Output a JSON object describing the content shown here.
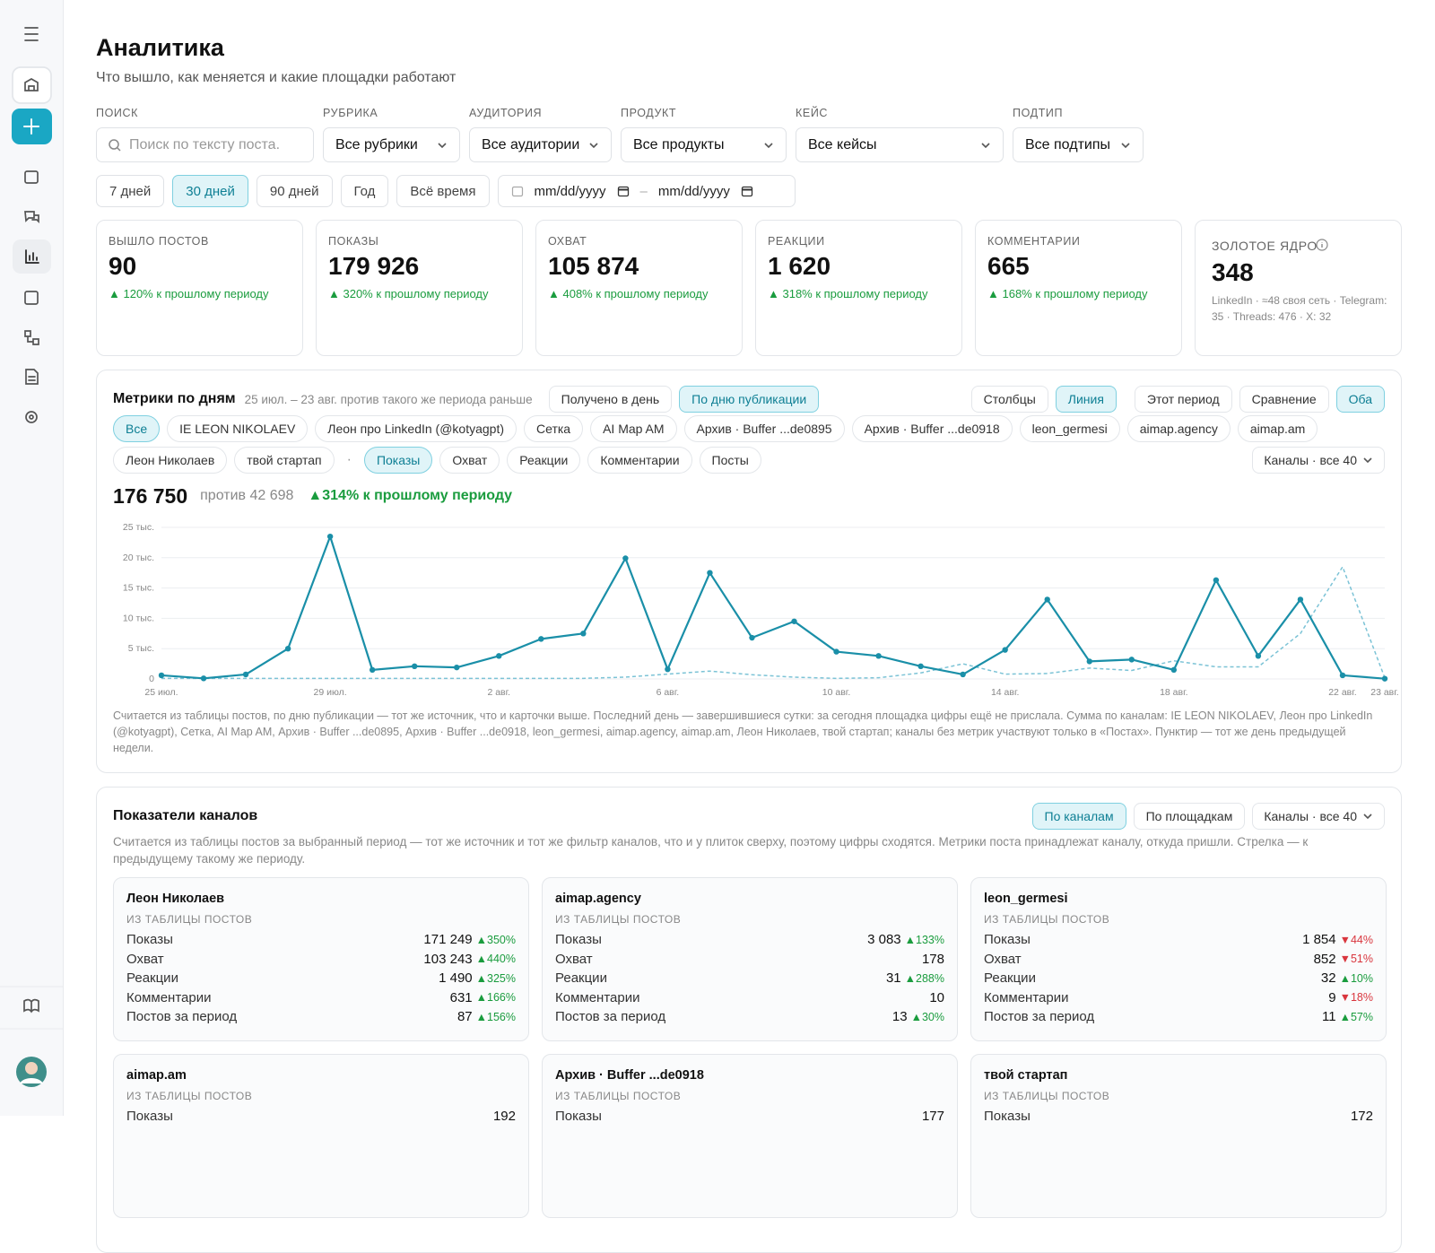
{
  "header": {
    "title": "Аналитика",
    "subtitle": "Что вышло, как меняется и какие площадки работают"
  },
  "filters": [
    {
      "label": "ПОИСК",
      "placeholder": "Поиск по тексту поста."
    },
    {
      "label": "РУБРИКА",
      "value": "Все рубрики"
    },
    {
      "label": "АУДИТОРИЯ",
      "value": "Все аудитории"
    },
    {
      "label": "ПРОДУКТ",
      "value": "Все продукты"
    },
    {
      "label": "КЕЙС",
      "value": "Все кейсы"
    },
    {
      "label": "ПОДТИП",
      "value": "Все подтипы"
    }
  ],
  "periods": {
    "options": [
      "7 дней",
      "30 дней",
      "90 дней",
      "Год",
      "Всё время"
    ],
    "active": 1,
    "date_from": "mm/dd/yyyy",
    "date_sep": "–",
    "date_to": "mm/dd/yyyy"
  },
  "kpis": [
    {
      "label": "ВЫШЛО ПОСТОВ",
      "value": "90",
      "delta": "▲ 120% к прошлому периоду"
    },
    {
      "label": "ПОКАЗЫ",
      "value": "179 926",
      "delta": "▲ 320% к прошлому периоду"
    },
    {
      "label": "ОХВАТ",
      "value": "105 874",
      "delta": "▲ 408% к прошлому периоду"
    },
    {
      "label": "РЕАКЦИИ",
      "value": "1 620",
      "delta": "▲ 318% к прошлому периоду"
    },
    {
      "label": "КОММЕНТАРИИ",
      "value": "665",
      "delta": "▲ 168% к прошлому периоду"
    }
  ],
  "golden": {
    "label": "ЗОЛОТОЕ ЯДРО",
    "value": "348",
    "note": "LinkedIn · ≈48 своя сеть · Telegram: 35 · Threads: 476 · X: 32"
  },
  "daily": {
    "title": "Метрики по дням",
    "subtitle": "25 июл. – 23 авг. против такого же периода раньше",
    "source_toggle": {
      "options": [
        "Получено в день",
        "По дню публикации"
      ],
      "active": 1
    },
    "view_toggle": {
      "options": [
        "Столбцы",
        "Линия"
      ],
      "active": 1
    },
    "range_toggle": {
      "options": [
        "Этот период",
        "Сравнение",
        "Оба"
      ],
      "active": 2
    },
    "channels": {
      "options": [
        "Все",
        "IE LEON NIKOLAEV",
        "Леон про LinkedIn (@kotyagpt)",
        "Сетка",
        "AI Map AM",
        "Архив · Buffer ...de0895",
        "Архив · Buffer ...de0918",
        "leon_germesi",
        "aimap.agency",
        "aimap.am",
        "Леон Николаев",
        "твой стартап"
      ],
      "active": 0
    },
    "separator": "·",
    "metrics": {
      "options": [
        "Показы",
        "Охват",
        "Реакции",
        "Комментарии",
        "Посты"
      ],
      "active": 0
    },
    "select": "Каналы · все 40",
    "total": "176 750",
    "baseline": "против 42 698",
    "change": "▲314% к прошлому периоду",
    "footnote": "Считается из таблицы постов, по дню публикации — тот же источник, что и карточки выше. Последний день — завершившиеся сутки: за сегодня площадка цифры ещё не прислала. Сумма по каналам: IE LEON NIKOLAEV, Леон про LinkedIn (@kotyagpt), Сетка, AI Map AM, Архив · Buffer ...de0895, Архив · Buffer ...de0918, leon_germesi, aimap.agency, aimap.am, Леон Николаев, твой стартап; каналы без метрик участвуют только в «Постах». Пунктир — тот же день предыдущей недели."
  },
  "chart_data": {
    "type": "line",
    "categories": [
      "25 июл.",
      null,
      null,
      null,
      "29 июл.",
      null,
      null,
      null,
      "2 авг.",
      null,
      null,
      null,
      "6 авг.",
      null,
      null,
      null,
      "10 авг.",
      null,
      null,
      null,
      "14 авг.",
      null,
      null,
      null,
      "18 авг.",
      null,
      null,
      null,
      "22 авг.",
      "23 авг."
    ],
    "series": [
      {
        "color": "#1a8fa8",
        "style": "solid",
        "values": [
          600,
          100,
          750,
          5000,
          23500,
          1500,
          2100,
          1900,
          3800,
          6600,
          7500,
          19900,
          1600,
          17500,
          6800,
          9500,
          4500,
          3800,
          2100,
          750,
          4800,
          13100,
          2900,
          3200,
          1500,
          16300,
          3800,
          13100,
          600,
          50
        ]
      },
      {
        "color": "#7cc3d6",
        "style": "dashed",
        "values": [
          100,
          100,
          100,
          100,
          100,
          100,
          100,
          100,
          100,
          100,
          100,
          300,
          800,
          1300,
          700,
          300,
          100,
          200,
          1000,
          2500,
          800,
          900,
          1800,
          1400,
          3000,
          2000,
          2000,
          7500,
          18500,
          200
        ]
      }
    ],
    "ylim": [
      0,
      25000
    ],
    "yticks": [
      0,
      {
        "value": 5000,
        "label": "5 тыс."
      },
      {
        "value": 10000,
        "label": "10 тыс."
      },
      {
        "value": 15000,
        "label": "15 тыс."
      },
      {
        "value": 20000,
        "label": "20 тыс."
      },
      {
        "value": 25000,
        "label": "25 тыс."
      }
    ],
    "grid": true
  },
  "channels_panel": {
    "title": "Показатели каналов",
    "view_toggle": {
      "options": [
        "По каналам",
        "По площадкам"
      ],
      "active": 0
    },
    "select": "Каналы · все 40",
    "note": "Считается из таблицы постов за выбранный период — тот же источник и тот же фильтр каналов, что и у плиток сверху, поэтому цифры сходятся. Метрики поста принадлежат каналу, откуда пришли. Стрелка — к предыдущему такому же периоду.",
    "cards": [
      {
        "name": "Леон Николаев",
        "source": "ИЗ ТАБЛИЦЫ ПОСТОВ",
        "rows": [
          {
            "label": "Показы",
            "value": "171 249",
            "delta": "▲350%"
          },
          {
            "label": "Охват",
            "value": "103 243",
            "delta": "▲440%"
          },
          {
            "label": "Реакции",
            "value": "1 490",
            "delta": "▲325%"
          },
          {
            "label": "Комментарии",
            "value": "631",
            "delta": "▲166%"
          },
          {
            "label": "Постов за период",
            "value": "87",
            "delta": "▲156%"
          }
        ]
      },
      {
        "name": "aimap.agency",
        "source": "ИЗ ТАБЛИЦЫ ПОСТОВ",
        "rows": [
          {
            "label": "Показы",
            "value": "3 083",
            "delta": "▲133%"
          },
          {
            "label": "Охват",
            "value": "178"
          },
          {
            "label": "Реакции",
            "value": "31",
            "delta": "▲288%"
          },
          {
            "label": "Комментарии",
            "value": "10"
          },
          {
            "label": "Постов за период",
            "value": "13",
            "delta": "▲30%"
          }
        ]
      },
      {
        "name": "leon_germesi",
        "source": "ИЗ ТАБЛИЦЫ ПОСТОВ",
        "rows": [
          {
            "label": "Показы",
            "value": "1 854",
            "delta": "▼44%"
          },
          {
            "label": "Охват",
            "value": "852",
            "delta": "▼51%"
          },
          {
            "label": "Реакции",
            "value": "32",
            "delta": "▲10%"
          },
          {
            "label": "Комментарии",
            "value": "9",
            "delta": "▼18%"
          },
          {
            "label": "Постов за период",
            "value": "11",
            "delta": "▲57%"
          }
        ]
      },
      {
        "name": "aimap.am",
        "source": "ИЗ ТАБЛИЦЫ ПОСТОВ",
        "rows": [
          {
            "label": "Показы",
            "value": "192"
          }
        ]
      },
      {
        "name": "Архив · Buffer ...de0918",
        "source": "ИЗ ТАБЛИЦЫ ПОСТОВ",
        "rows": [
          {
            "label": "Показы",
            "value": "177"
          }
        ]
      },
      {
        "name": "твой стартап",
        "source": "ИЗ ТАБЛИЦЫ ПОСТОВ",
        "rows": [
          {
            "label": "Показы",
            "value": "172"
          }
        ]
      }
    ]
  }
}
